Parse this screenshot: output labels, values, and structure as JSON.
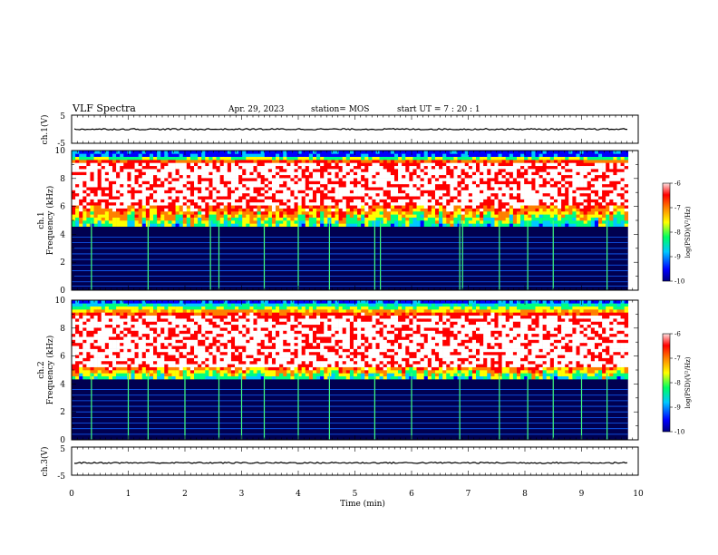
{
  "header": {
    "title": "VLF Spectra",
    "date": "Apr. 29, 2023",
    "station": "station= MOS",
    "start_ut": "start  UT =   7 : 20 : 1"
  },
  "colors": {
    "cmap": [
      "#000080",
      "#0000ff",
      "#00c8ff",
      "#00ff80",
      "#ffff00",
      "#ff8000",
      "#ff0000",
      "#ffffff"
    ],
    "line": "#000000"
  },
  "chart_data": [
    {
      "type": "line",
      "id": "ch1-waveform",
      "ylabel": "ch.1(V)",
      "ylim": [
        -5,
        5
      ],
      "yticks": [
        "5",
        "-5"
      ],
      "xlim": [
        0,
        10
      ],
      "level": 0.0
    },
    {
      "type": "heatmap",
      "id": "ch1-spectrogram",
      "ylabel": "ch.1\nFrequency (kHz)",
      "ylabel_line1": "ch.1",
      "ylabel_line2": "Frequency (kHz)",
      "ylim": [
        0,
        10
      ],
      "yticks": [
        "0",
        "2",
        "4",
        "6",
        "8",
        "10"
      ],
      "xlim": [
        0,
        9.82
      ],
      "colorbar": {
        "label": "log(PSD)(V²/Hz)",
        "range": [
          -10,
          -6
        ],
        "ticks": [
          "-6",
          "-7",
          "-8",
          "-9",
          "-10"
        ]
      },
      "intense_band_khz": [
        6.0,
        9.2
      ],
      "mid_band_khz": [
        4.5,
        9.6
      ],
      "noise_lines_khz": [
        0.3,
        0.6,
        1.0,
        1.4,
        1.8,
        2.2,
        2.6,
        3.0,
        3.4,
        3.8
      ],
      "spike_times_min": [
        0.35,
        1.35,
        2.45,
        2.6,
        3.4,
        4.0,
        4.55,
        5.35,
        5.45,
        6.85,
        6.9,
        7.55,
        8.05,
        8.5,
        9.45
      ]
    },
    {
      "type": "heatmap",
      "id": "ch2-spectrogram",
      "ylabel": "ch.2\nFrequency (kHz)",
      "ylabel_line1": "ch.2",
      "ylabel_line2": "Frequency (kHz)",
      "ylim": [
        0,
        10
      ],
      "yticks": [
        "0",
        "2",
        "4",
        "6",
        "8",
        "10"
      ],
      "xlim": [
        0,
        9.82
      ],
      "colorbar": {
        "label": "log(PSD)(V²/Hz)",
        "range": [
          -10,
          -6
        ],
        "ticks": [
          "-6",
          "-7",
          "-8",
          "-9",
          "-10"
        ]
      },
      "intense_band_khz": [
        5.3,
        9.0
      ],
      "mid_band_khz": [
        4.3,
        9.8
      ],
      "noise_lines_khz": [
        0.4,
        0.8,
        1.2,
        1.6,
        2.0,
        2.4,
        2.8,
        3.2,
        3.6
      ],
      "spike_times_min": [
        0.35,
        1.0,
        1.35,
        2.0,
        2.6,
        3.0,
        3.4,
        4.0,
        4.55,
        5.35,
        6.0,
        6.85,
        7.55,
        8.05,
        8.5,
        9.0,
        9.45
      ]
    },
    {
      "type": "line",
      "id": "ch3-waveform",
      "ylabel": "ch.3(V)",
      "ylim": [
        -5,
        5
      ],
      "yticks": [
        "5",
        "-5"
      ],
      "xlim": [
        0,
        10
      ],
      "level": -0.6
    }
  ],
  "xaxis": {
    "label": "Time (min)",
    "range": [
      0,
      10
    ],
    "ticks": [
      "0",
      "1",
      "2",
      "3",
      "4",
      "5",
      "6",
      "7",
      "8",
      "9",
      "10"
    ]
  }
}
